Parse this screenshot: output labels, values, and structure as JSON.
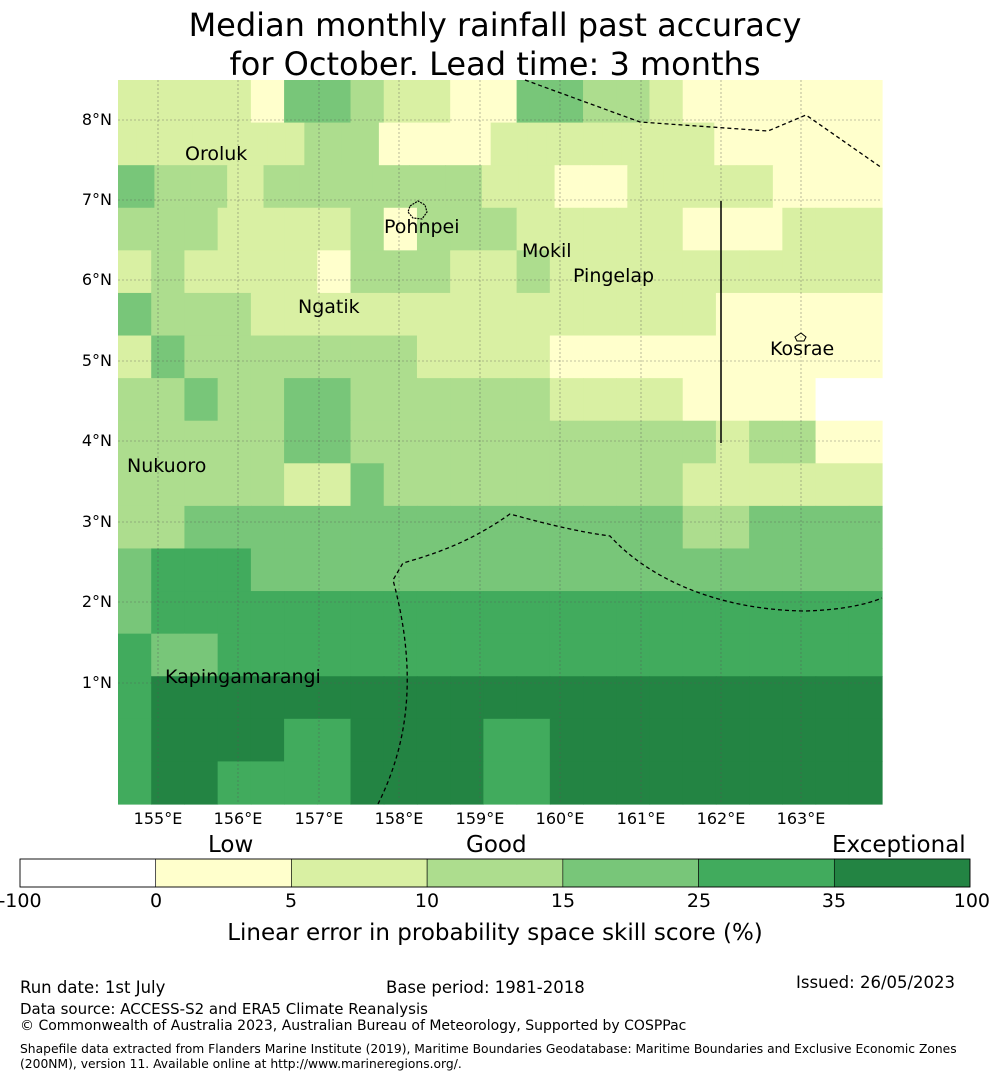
{
  "title": {
    "line1": "Median monthly rainfall past accuracy",
    "line2": "for October. Lead time: 3 months"
  },
  "map": {
    "lon_labels": [
      "155°E",
      "156°E",
      "157°E",
      "158°E",
      "159°E",
      "160°E",
      "161°E",
      "162°E",
      "163°E"
    ],
    "lat_labels": [
      "8°N",
      "7°N",
      "6°N",
      "5°N",
      "4°N",
      "3°N",
      "2°N",
      "1°N"
    ],
    "places": [
      {
        "name": "Oroluk"
      },
      {
        "name": "Pohnpei"
      },
      {
        "name": "Mokil"
      },
      {
        "name": "Pingelap"
      },
      {
        "name": "Ngatik"
      },
      {
        "name": "Kosrae"
      },
      {
        "name": "Nukuoro"
      },
      {
        "name": "Kapingamarangi"
      }
    ],
    "grid_skill_category": [
      [
        2,
        2,
        2,
        2,
        1,
        4,
        4,
        3,
        2,
        2,
        1,
        1,
        4,
        4,
        3,
        3,
        2,
        1,
        1,
        1,
        1,
        1,
        1
      ],
      [
        2,
        2,
        2,
        2,
        2,
        2,
        2,
        2,
        2,
        2,
        3,
        3,
        3,
        3,
        1,
        1,
        1,
        1,
        1,
        1,
        2,
        2,
        2,
        2,
        2,
        2,
        2,
        2,
        2,
        2,
        2,
        2,
        1,
        1,
        1,
        1,
        1,
        1,
        1,
        1,
        1
      ],
      [
        4,
        3,
        3,
        2,
        3,
        3,
        3,
        3,
        3,
        3,
        2,
        2,
        1,
        1,
        2,
        2,
        2,
        2,
        1,
        1,
        1
      ],
      [
        3,
        3,
        3,
        2,
        2,
        2,
        2,
        3,
        1,
        3,
        3,
        3,
        2,
        2,
        2,
        2,
        2,
        1,
        1,
        1,
        2,
        2,
        2
      ],
      [
        2,
        3,
        2,
        2,
        2,
        2,
        1,
        3,
        3,
        3,
        2,
        2,
        3,
        2,
        2,
        2,
        2,
        2,
        2,
        2,
        2,
        2,
        2
      ],
      [
        4,
        3,
        3,
        3,
        2,
        2,
        2,
        2,
        2,
        2,
        2,
        2,
        2,
        2,
        2,
        2,
        2,
        2,
        1,
        1,
        1,
        1,
        1
      ],
      [
        2,
        4,
        3,
        3,
        3,
        3,
        3,
        3,
        3,
        2,
        2,
        2,
        2,
        1,
        1,
        1,
        1,
        1,
        1,
        1,
        1,
        1,
        1
      ],
      [
        3,
        3,
        4,
        3,
        3,
        4,
        4,
        3,
        3,
        3,
        3,
        3,
        3,
        2,
        2,
        2,
        2,
        1,
        1,
        1,
        1,
        0,
        0
      ],
      [
        3,
        3,
        3,
        3,
        3,
        4,
        4,
        3,
        3,
        3,
        3,
        3,
        3,
        3,
        3,
        3,
        3,
        3,
        2,
        3,
        3,
        1,
        1
      ],
      [
        3,
        3,
        3,
        3,
        3,
        2,
        2,
        4,
        3,
        3,
        3,
        3,
        3,
        3,
        3,
        3,
        3,
        2,
        2,
        2,
        2,
        2,
        2
      ],
      [
        3,
        3,
        4,
        4,
        4,
        4,
        4,
        4,
        4,
        4,
        4,
        4,
        4,
        4,
        4,
        4,
        4,
        3,
        3,
        4,
        4,
        4,
        4
      ],
      [
        4,
        5,
        5,
        5,
        4,
        4,
        4,
        4,
        4,
        4,
        4,
        4,
        4,
        4,
        4,
        4,
        4,
        4,
        4,
        4,
        4,
        4,
        4
      ],
      [
        4,
        5,
        5,
        5,
        5,
        5,
        5,
        5,
        5,
        5,
        5,
        5,
        5,
        5,
        5,
        5,
        5,
        5,
        5,
        5,
        5,
        5,
        5
      ],
      [
        5,
        4,
        4,
        5,
        5,
        5,
        5,
        5,
        5,
        5,
        5,
        5,
        5,
        5,
        5,
        5,
        5,
        5,
        5,
        5,
        5,
        5,
        5
      ],
      [
        5,
        6,
        6,
        6,
        6,
        6,
        6,
        6,
        6,
        6,
        6,
        6,
        6,
        6,
        6,
        6,
        6,
        6,
        6,
        6,
        6,
        6,
        6
      ],
      [
        5,
        6,
        6,
        6,
        6,
        5,
        5,
        6,
        6,
        6,
        6,
        5,
        5,
        6,
        6,
        6,
        6,
        6,
        6,
        6,
        6,
        6,
        6
      ],
      [
        5,
        6,
        6,
        5,
        5,
        5,
        5,
        6,
        6,
        6,
        6,
        5,
        5,
        6,
        6,
        6,
        6,
        6,
        6,
        6,
        6,
        6,
        6
      ]
    ]
  },
  "colorbar": {
    "category_labels": {
      "low": "Low",
      "good": "Good",
      "exceptional": "Exceptional"
    },
    "ticks": [
      "-100",
      "0",
      "5",
      "10",
      "15",
      "25",
      "35",
      "100"
    ],
    "colors": [
      "#ffffff",
      "#ffffcc",
      "#d9f0a3",
      "#addd8e",
      "#78c679",
      "#41ab5d",
      "#238443"
    ],
    "label": "Linear error in probability space skill score (%)"
  },
  "footer": {
    "run_date": "Run date: 1st July",
    "base_period": "Base period: 1981-2018",
    "issued": "Issued: 26/05/2023",
    "data_source": "Data source: ACCESS-S2 and ERA5 Climate Reanalysis",
    "copyright": "© Commonwealth of Australia 2023, Australian Bureau of Meteorology, Supported by COSPPac",
    "shapefile_line1": "Shapefile data extracted from Flanders Marine Institute (2019), Maritime Boundaries Geodatabase: Maritime Boundaries and Exclusive Economic Zones",
    "shapefile_line2": "(200NM), version 11. Available online at http://www.marineregions.org/."
  }
}
